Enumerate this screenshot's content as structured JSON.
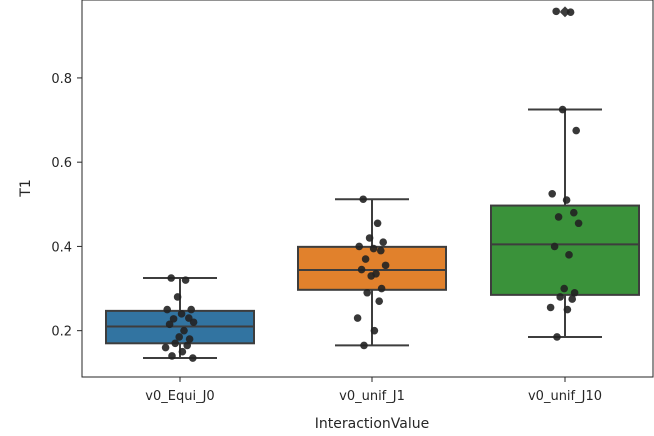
{
  "chart_data": {
    "type": "boxplot-with-strip",
    "title": "",
    "xlabel": "InteractionValue",
    "ylabel": "T1",
    "ylim": [
      0.09,
      0.985
    ],
    "yticks": [
      0.2,
      0.4,
      0.6,
      0.8
    ],
    "ytick_labels": [
      "0.2",
      "0.4",
      "0.6",
      "0.8"
    ],
    "categories": [
      "v0_Equi_J0",
      "v0_unif_J1",
      "v0_unif_J10"
    ],
    "grid": false,
    "colors": {
      "v0_Equi_J0": "#3274a1",
      "v0_unif_J1": "#e1812c",
      "v0_unif_J10": "#3a923a",
      "box_edge": "#3d3d3d",
      "points": "#222222"
    },
    "boxes": [
      {
        "category": "v0_Equi_J0",
        "whisker_low": 0.135,
        "q1": 0.17,
        "median": 0.21,
        "q3": 0.247,
        "whisker_high": 0.325,
        "outliers": []
      },
      {
        "category": "v0_unif_J1",
        "whisker_low": 0.165,
        "q1": 0.297,
        "median": 0.344,
        "q3": 0.399,
        "whisker_high": 0.512,
        "outliers": []
      },
      {
        "category": "v0_unif_J10",
        "whisker_low": 0.185,
        "q1": 0.285,
        "median": 0.405,
        "q3": 0.497,
        "whisker_high": 0.725,
        "outliers": [
          0.956,
          0.958
        ]
      }
    ],
    "points": [
      {
        "category": "v0_Equi_J0",
        "values": [
          0.325,
          0.32,
          0.28,
          0.25,
          0.25,
          0.24,
          0.23,
          0.228,
          0.22,
          0.215,
          0.2,
          0.185,
          0.18,
          0.17,
          0.165,
          0.16,
          0.15,
          0.14,
          0.135
        ]
      },
      {
        "category": "v0_unif_J1",
        "values": [
          0.512,
          0.455,
          0.42,
          0.41,
          0.4,
          0.395,
          0.39,
          0.37,
          0.355,
          0.345,
          0.335,
          0.33,
          0.3,
          0.29,
          0.27,
          0.23,
          0.2,
          0.165
        ]
      },
      {
        "category": "v0_unif_J10",
        "values": [
          0.958,
          0.956,
          0.725,
          0.675,
          0.525,
          0.51,
          0.48,
          0.47,
          0.455,
          0.4,
          0.38,
          0.3,
          0.29,
          0.28,
          0.275,
          0.255,
          0.25,
          0.185
        ]
      }
    ]
  }
}
